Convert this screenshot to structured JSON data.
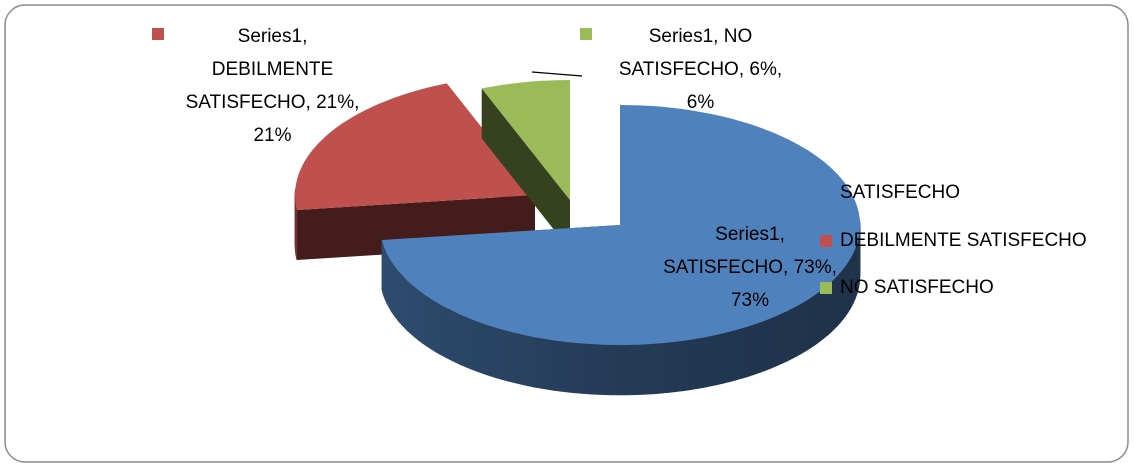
{
  "chart_data": {
    "type": "pie",
    "series": [
      {
        "name": "Series1",
        "categories": [
          "SATISFECHO",
          "DEBILMENTE SATISFECHO",
          "NO SATISFECHO"
        ],
        "values": [
          73,
          21,
          6
        ],
        "value_labels": [
          "Series1, SATISFECHO, 73%, 73%",
          "Series1, DEBILMENTE SATISFECHO, 21%, 21%",
          "Series1, NO SATISFECHO, 6%, 6%"
        ],
        "colors": [
          "#4f81bd",
          "#c0504d",
          "#9bbb59"
        ]
      }
    ],
    "legend": "right"
  }
}
